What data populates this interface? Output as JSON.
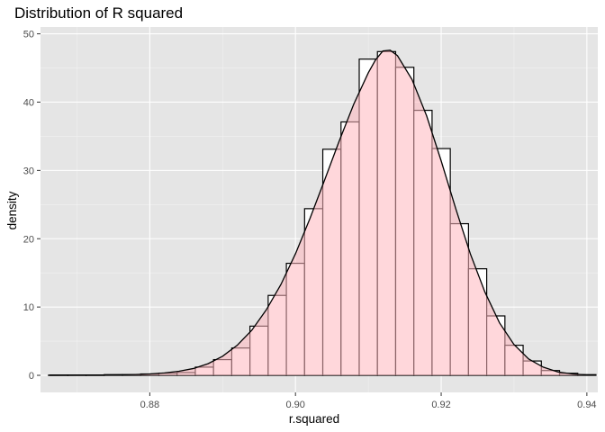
{
  "chart_data": {
    "type": "bar",
    "title": "Distribution of R squared",
    "xlabel": "r.squared",
    "ylabel": "density",
    "xlim": [
      0.865,
      0.9415
    ],
    "ylim": [
      -2.5,
      51
    ],
    "x_ticks": [
      0.88,
      0.9,
      0.92,
      0.94
    ],
    "x_tick_labels": [
      "0.88",
      "0.90",
      "0.92",
      "0.94"
    ],
    "y_ticks": [
      0,
      10,
      20,
      30,
      40,
      50
    ],
    "y_tick_labels": [
      "0",
      "10",
      "20",
      "30",
      "40",
      "50"
    ],
    "grid": true,
    "legend": "none",
    "histogram": {
      "bin_width": 0.0025,
      "bin_centers": [
        0.8675,
        0.87,
        0.8725,
        0.875,
        0.8775,
        0.88,
        0.8825,
        0.885,
        0.8875,
        0.89,
        0.8925,
        0.895,
        0.8975,
        0.9,
        0.9025,
        0.905,
        0.9075,
        0.91,
        0.9125,
        0.915,
        0.9175,
        0.92,
        0.9225,
        0.925,
        0.9275,
        0.93,
        0.9325,
        0.935,
        0.9375,
        0.94
      ],
      "values": [
        0.05,
        0.05,
        0.05,
        0.1,
        0.1,
        0.2,
        0.3,
        0.4,
        1.2,
        2.3,
        4.0,
        7.2,
        11.7,
        16.4,
        24.4,
        33.1,
        37.1,
        46.3,
        47.4,
        45.1,
        38.8,
        33.2,
        22.2,
        15.6,
        8.7,
        4.4,
        2.1,
        0.7,
        0.3,
        0.1
      ]
    },
    "density": {
      "x": [
        0.866,
        0.87,
        0.875,
        0.878,
        0.88,
        0.882,
        0.884,
        0.886,
        0.888,
        0.89,
        0.892,
        0.894,
        0.896,
        0.898,
        0.9,
        0.902,
        0.904,
        0.906,
        0.908,
        0.91,
        0.911,
        0.912,
        0.913,
        0.914,
        0.916,
        0.918,
        0.92,
        0.922,
        0.924,
        0.926,
        0.928,
        0.93,
        0.932,
        0.934,
        0.936,
        0.938,
        0.94
      ],
      "y": [
        0.0,
        0.02,
        0.06,
        0.12,
        0.2,
        0.35,
        0.6,
        1.0,
        1.7,
        2.8,
        4.4,
        6.6,
        9.6,
        13.3,
        17.8,
        23.0,
        28.6,
        34.3,
        39.7,
        44.3,
        46.2,
        47.5,
        47.6,
        46.8,
        43.3,
        38.0,
        31.4,
        24.4,
        17.8,
        12.2,
        7.7,
        4.5,
        2.4,
        1.2,
        0.5,
        0.2,
        0.05
      ]
    },
    "colors": {
      "panel": "#e5e5e5",
      "grid_major": "#ffffff",
      "grid_minor": "#f2f2f2",
      "bar_fill": "#ffffff",
      "bar_stroke": "#000000",
      "density_fill": "#ffb6bd",
      "density_fill_opacity": 0.55,
      "density_line": "#000000",
      "tick_label": "#4d4d4d",
      "tick_mark": "#333333"
    }
  }
}
